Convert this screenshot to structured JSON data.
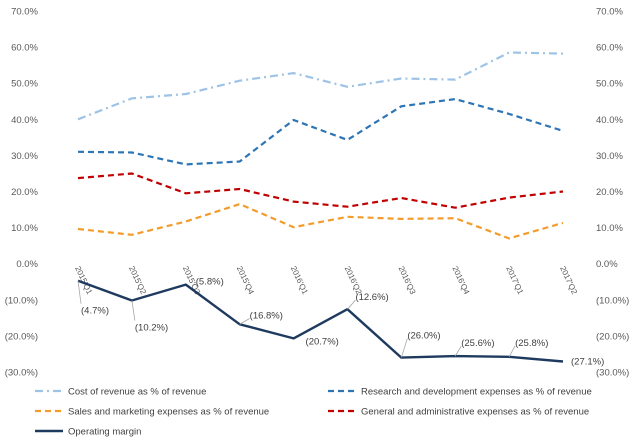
{
  "chart_data": {
    "type": "line",
    "categories": [
      "2015'Q1",
      "2015'Q2",
      "2015'Q3",
      "2015'Q4",
      "2016'Q1",
      "2016'Q2",
      "2016'Q3",
      "2016'Q4",
      "2017'Q1",
      "2017'Q2"
    ],
    "ylim": [
      -30,
      70
    ],
    "yticks": [
      "70.0%",
      "60.0%",
      "50.0%",
      "40.0%",
      "30.0%",
      "20.0%",
      "10.0%",
      "0.0%",
      "(10.0%)",
      "(20.0%)",
      "(30.0%)"
    ],
    "grid": false,
    "legend_position": "bottom",
    "series": [
      {
        "name": "Cost of revenue as % of revenue",
        "values": [
          40.0,
          45.8,
          47.0,
          50.7,
          52.8,
          49.0,
          51.3,
          51.0,
          58.5,
          58.2
        ],
        "color": "#9DC3E6",
        "dash": "dash-dot"
      },
      {
        "name": "Research and development expenses as % of revenue",
        "values": [
          31.0,
          30.8,
          27.5,
          28.3,
          39.8,
          34.3,
          43.6,
          45.6,
          41.5,
          36.8
        ],
        "color": "#2E75B6",
        "dash": "dash"
      },
      {
        "name": "Sales and marketing expenses as % of revenue",
        "values": [
          9.6,
          8.0,
          11.7,
          16.5,
          10.1,
          13.0,
          12.4,
          12.6,
          7.0,
          11.3
        ],
        "color": "#F39C2C",
        "dash": "dash"
      },
      {
        "name": "General and administrative expenses as % of revenue",
        "values": [
          23.7,
          25.0,
          19.5,
          20.7,
          17.2,
          15.8,
          18.2,
          15.5,
          18.3,
          20.0
        ],
        "color": "#C00000",
        "dash": "dash"
      },
      {
        "name": "Operating margin",
        "values": [
          -4.7,
          -10.2,
          -5.8,
          -16.8,
          -20.7,
          -12.6,
          -26.0,
          -25.6,
          -25.8,
          -27.1
        ],
        "color": "#1F3A5F",
        "dash": "solid"
      }
    ],
    "data_labels": [
      "(4.7%)",
      "(10.2%)",
      "(5.8%)",
      "(16.8%)",
      "(20.7%)",
      "(12.6%)",
      "(26.0%)",
      "(25.6%)",
      "(25.8%)",
      "(27.1%)"
    ]
  }
}
